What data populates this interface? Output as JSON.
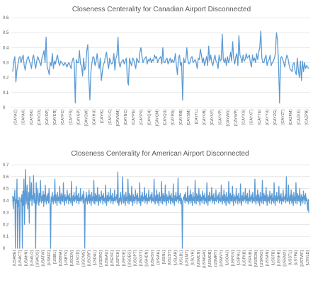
{
  "chart_data": [
    {
      "type": "line",
      "title": "Closeness Centerality for Canadian Airport Disconnected",
      "xlabel": "",
      "ylabel": "",
      "ylim": [
        0,
        0.6
      ],
      "yticks": [
        "0",
        "0.1",
        "0.2",
        "0.3",
        "0.4",
        "0.5",
        "0.6"
      ],
      "grid": true,
      "legend": "none",
      "color": "#5b9bd5",
      "x_tick_labels": [
        "[CAYAC]",
        "[CAYAX]",
        "[CAYBK]",
        "[CAYCO]",
        "[CAYDP]",
        "[CAYER]",
        "[CAYFC]",
        "[CAYFS]",
        "[CAYGP]",
        "[CAYGW]",
        "[CAYHU]",
        "[CAYIK]",
        "[CAYLC]",
        "[CAYMM]",
        "[CAYNC]",
        "[CAYPE]",
        "[CAYPX]",
        "[CAYQH]",
        "[CAYQM]",
        "[CAYQU]",
        "[CAYRA]",
        "[CAYRB]",
        "[CAYSM]",
        "[CAYTL]",
        "[CAYUB]",
        "[CAYUY]",
        "[CAYVP]",
        "[CAYWG]",
        "[CAYWP]",
        "[CAYXS]",
        "[CAYXT]",
        "[CAYYE]",
        "[CAYYU]",
        "[CAYZG]",
        "[CAYZT]",
        "[CAZFM]",
        "[CAZKE]",
        "[CAZPB]"
      ],
      "values": [
        0.24,
        0.31,
        0.34,
        0.17,
        0.25,
        0.29,
        0.33,
        0.34,
        0.3,
        0.33,
        0.35,
        0.28,
        0.25,
        0.3,
        0.33,
        0.34,
        0.31,
        0.29,
        0.26,
        0.33,
        0.35,
        0.3,
        0.26,
        0.31,
        0.34,
        0.32,
        0.3,
        0.28,
        0.33,
        0.35,
        0.38,
        0.3,
        0.47,
        0.27,
        0.25,
        0.22,
        0.3,
        0.28,
        0.36,
        0.26,
        0.31,
        0.29,
        0.33,
        0.35,
        0.3,
        0.28,
        0.31,
        0.3,
        0.29,
        0.28,
        0.3,
        0.29,
        0.27,
        0.29,
        0.3,
        0.28,
        0.26,
        0.31,
        0.33,
        0.3,
        0.03,
        0.32,
        0.3,
        0.3,
        0.38,
        0.29,
        0.28,
        0.21,
        0.33,
        0.25,
        0.27,
        0.38,
        0.42,
        0.2,
        0.05,
        0.24,
        0.3,
        0.34,
        0.33,
        0.28,
        0.31,
        0.36,
        0.29,
        0.26,
        0.33,
        0.18,
        0.24,
        0.29,
        0.3,
        0.35,
        0.37,
        0.3,
        0.26,
        0.33,
        0.3,
        0.29,
        0.3,
        0.36,
        0.25,
        0.33,
        0.35,
        0.47,
        0.3,
        0.27,
        0.3,
        0.31,
        0.32,
        0.29,
        0.31,
        0.33,
        0.18,
        0.15,
        0.33,
        0.3,
        0.28,
        0.33,
        0.32,
        0.29,
        0.26,
        0.33,
        0.31,
        0.3,
        0.37,
        0.4,
        0.34,
        0.3,
        0.32,
        0.33,
        0.34,
        0.29,
        0.32,
        0.31,
        0.33,
        0.3,
        0.32,
        0.31,
        0.35,
        0.33,
        0.34,
        0.3,
        0.32,
        0.33,
        0.34,
        0.29,
        0.4,
        0.3,
        0.3,
        0.32,
        0.33,
        0.29,
        0.31,
        0.33,
        0.3,
        0.32,
        0.3,
        0.31,
        0.36,
        0.28,
        0.22,
        0.33,
        0.35,
        0.28,
        0.3,
        0.05,
        0.33,
        0.3,
        0.31,
        0.4,
        0.32,
        0.29,
        0.3,
        0.33,
        0.34,
        0.3,
        0.31,
        0.32,
        0.3,
        0.26,
        0.33,
        0.32,
        0.39,
        0.35,
        0.3,
        0.33,
        0.28,
        0.31,
        0.34,
        0.28,
        0.41,
        0.31,
        0.35,
        0.3,
        0.28,
        0.32,
        0.35,
        0.31,
        0.3,
        0.26,
        0.35,
        0.31,
        0.32,
        0.49,
        0.32,
        0.3,
        0.33,
        0.28,
        0.34,
        0.3,
        0.32,
        0.37,
        0.31,
        0.44,
        0.33,
        0.29,
        0.34,
        0.36,
        0.28,
        0.48,
        0.35,
        0.33,
        0.3,
        0.35,
        0.31,
        0.32,
        0.36,
        0.33,
        0.34,
        0.35,
        0.3,
        0.27,
        0.35,
        0.31,
        0.33,
        0.3,
        0.36,
        0.32,
        0.37,
        0.4,
        0.51,
        0.33,
        0.3,
        0.3,
        0.33,
        0.35,
        0.28,
        0.31,
        0.32,
        0.35,
        0.28,
        0.3,
        0.31,
        0.33,
        0.36,
        0.5,
        0.45,
        0.3,
        0.03,
        0.33,
        0.34,
        0.32,
        0.3,
        0.27,
        0.32,
        0.35,
        0.33,
        0.29,
        0.26,
        0.25,
        0.24,
        0.29,
        0.3,
        0.24,
        0.22,
        0.33,
        0.25,
        0.2,
        0.31,
        0.18,
        0.31,
        0.24,
        0.3,
        0.26,
        0.28,
        0.27,
        0.26
      ]
    },
    {
      "type": "line",
      "title": "Closeness Centerality for American Airport Disconnected",
      "xlabel": "",
      "ylabel": "",
      "ylim": [
        0,
        0.7
      ],
      "yticks": [
        "0",
        "0.1",
        "0.2",
        "0.3",
        "0.4",
        "0.5",
        "0.6",
        "0.7"
      ],
      "grid": true,
      "legend": "none",
      "color": "#5b9bd5",
      "x_tick_labels": [
        "[USABE]",
        "[USACT]",
        "[USAHN]",
        "[USALO]",
        "[USAOO]",
        "[USATW]",
        "[USBFF]",
        "[USBIL]",
        "[USBNA]",
        "[USBTV]",
        "[USCDV]",
        "[USCID]",
        "[USCMS]",
        "[USCRF]",
        "[USDAL]",
        "[USDRO]",
        "[USEAU]",
        "[USESC]",
        "[USFCH]",
        "[USFOE]",
        "[USGEG]",
        "[USGPT]",
        "[USGXY]",
        "[USHDN]",
        "[USHSV]",
        "[USIAH]",
        "[USINL]",
        "[USJST]",
        "[USLAR]",
        "[USLBL]",
        "[USLMT]",
        "[USLYH]",
        "[USMCN]",
        "[USMGW]",
        "[USMOB]",
        "[USMRY]",
        "[USMVY]",
        "[USOAJ]",
        "[USPGV]",
        "[USPHL]",
        "[USPKB]",
        "[USPUB]",
        "[USRDM]",
        "[USRNO]",
        "[USSAN]",
        "[USSFB]",
        "[USSHR]",
        "[USSMX]",
        "[USSTL]",
        "[USTPA]",
        "[USTWF]",
        "[USVLD]"
      ],
      "values": [
        0.44,
        0.33,
        0.43,
        0.4,
        0.49,
        0.0,
        0.41,
        0.38,
        0.58,
        0.0,
        0.4,
        0.35,
        0.43,
        0.0,
        0.31,
        0.42,
        0.39,
        0.45,
        0.0,
        0.48,
        0.36,
        0.58,
        0.2,
        0.44,
        0.66,
        0.37,
        0.42,
        0.53,
        0.33,
        0.39,
        0.47,
        0.21,
        0.6,
        0.4,
        0.42,
        0.55,
        0.36,
        0.44,
        0.41,
        0.61,
        0.38,
        0.46,
        0.4,
        0.0,
        0.55,
        0.37,
        0.43,
        0.5,
        0.4,
        0.36,
        0.46,
        0.39,
        0.57,
        0.42,
        0.38,
        0.44,
        0.4,
        0.48,
        0.35,
        0.45,
        0.39,
        0.53,
        0.41,
        0.37,
        0.44,
        0.4,
        0.46,
        0.38,
        0.5,
        0.42,
        0.36,
        0.0,
        0.43,
        0.39,
        0.47,
        0.41,
        0.37,
        0.44,
        0.4,
        0.58,
        0.38,
        0.45,
        0.41,
        0.36,
        0.47,
        0.4,
        0.43,
        0.38,
        0.52,
        0.42,
        0.37,
        0.46,
        0.4,
        0.44,
        0.39,
        0.55,
        0.41,
        0.36,
        0.45,
        0.4,
        0.43,
        0.38,
        0.49,
        0.41,
        0.44,
        0.37,
        0.46,
        0.4,
        0.42,
        0.38,
        0.56,
        0.41,
        0.36,
        0.44,
        0.4,
        0.47,
        0.39,
        0.43,
        0.41,
        0.52,
        0.38,
        0.44,
        0.4,
        0.46,
        0.37,
        0.42,
        0.4,
        0.5,
        0.39,
        0.43,
        0.41,
        0.45,
        0.38,
        0.48,
        0.4,
        0.0,
        0.42,
        0.39,
        0.47,
        0.41,
        0.37,
        0.44,
        0.4,
        0.49,
        0.38,
        0.45,
        0.41,
        0.36,
        0.47,
        0.4,
        0.43,
        0.38,
        0.57,
        0.42,
        0.37,
        0.46,
        0.4,
        0.44,
        0.39,
        0.51,
        0.41,
        0.36,
        0.45,
        0.4,
        0.43,
        0.38,
        0.48,
        0.41,
        0.44,
        0.37,
        0.46,
        0.4,
        0.42,
        0.38,
        0.53,
        0.41,
        0.36,
        0.44,
        0.4,
        0.47,
        0.39,
        0.43,
        0.41,
        0.5,
        0.38,
        0.44,
        0.4,
        0.46,
        0.37,
        0.42,
        0.4,
        0.49,
        0.39,
        0.43,
        0.41,
        0.45,
        0.38,
        0.64,
        0.4,
        0.36,
        0.42,
        0.39,
        0.47,
        0.41,
        0.37,
        0.44,
        0.6,
        0.4,
        0.38,
        0.45,
        0.41,
        0.36,
        0.47,
        0.4,
        0.43,
        0.38,
        0.58,
        0.42,
        0.37,
        0.46,
        0.4,
        0.44,
        0.39,
        0.52,
        0.41,
        0.36,
        0.45,
        0.4,
        0.43,
        0.38,
        0.49,
        0.41,
        0.44,
        0.37,
        0.46,
        0.4,
        0.42,
        0.38,
        0.55,
        0.41,
        0.36,
        0.44,
        0.4,
        0.47,
        0.39,
        0.43,
        0.41,
        0.51,
        0.38,
        0.44,
        0.4,
        0.46,
        0.37,
        0.42,
        0.4,
        0.49,
        0.39,
        0.43,
        0.41,
        0.45,
        0.38,
        0.47,
        0.4,
        0.42,
        0.39,
        0.58,
        0.41,
        0.37,
        0.44,
        0.4,
        0.49,
        0.38,
        0.45,
        0.41,
        0.36,
        0.47,
        0.4,
        0.43,
        0.38,
        0.56,
        0.42,
        0.37,
        0.46,
        0.4,
        0.44,
        0.39,
        0.53,
        0.41,
        0.36,
        0.45,
        0.4,
        0.43,
        0.38,
        0.48,
        0.41,
        0.44,
        0.37,
        0.46,
        0.4,
        0.42,
        0.38,
        0.54,
        0.41,
        0.36,
        0.44,
        0.4,
        0.47,
        0.39,
        0.43,
        0.41,
        0.59,
        0.38,
        0.44,
        0.4,
        0.46,
        0.37,
        0.42,
        0.4,
        0.0,
        0.39,
        0.43,
        0.41,
        0.45,
        0.38,
        0.47,
        0.4,
        0.42,
        0.39,
        0.52,
        0.41,
        0.37,
        0.44,
        0.4,
        0.49,
        0.38,
        0.45,
        0.41,
        0.36,
        0.47,
        0.4,
        0.43,
        0.38,
        0.57,
        0.42,
        0.37,
        0.46,
        0.4,
        0.44,
        0.39,
        0.5,
        0.41,
        0.36,
        0.45,
        0.4,
        0.43,
        0.38,
        0.48,
        0.41,
        0.44,
        0.37,
        0.46,
        0.4,
        0.42,
        0.38,
        0.55,
        0.41,
        0.36,
        0.44,
        0.4,
        0.47,
        0.39,
        0.43,
        0.41,
        0.51,
        0.38,
        0.44,
        0.4,
        0.46,
        0.37,
        0.42,
        0.4,
        0.49,
        0.39,
        0.43,
        0.41,
        0.45,
        0.38,
        0.47,
        0.4,
        0.42,
        0.39,
        0.53,
        0.41,
        0.37,
        0.44,
        0.4,
        0.49,
        0.38,
        0.45,
        0.41,
        0.36,
        0.47,
        0.4,
        0.43,
        0.38,
        0.56,
        0.42,
        0.37,
        0.46,
        0.4,
        0.44,
        0.39,
        0.52,
        0.41,
        0.36,
        0.45,
        0.4,
        0.43,
        0.38,
        0.5,
        0.41,
        0.44,
        0.37,
        0.46,
        0.4,
        0.42,
        0.38,
        0.54,
        0.41,
        0.36,
        0.44,
        0.4,
        0.47,
        0.39,
        0.43,
        0.41,
        0.5,
        0.38,
        0.44,
        0.4,
        0.46,
        0.37,
        0.42,
        0.4,
        0.49,
        0.39,
        0.43,
        0.41,
        0.45,
        0.38,
        0.47,
        0.4,
        0.42,
        0.39,
        0.58,
        0.41,
        0.37,
        0.44,
        0.4,
        0.49,
        0.38,
        0.45,
        0.41,
        0.36,
        0.47,
        0.4,
        0.43,
        0.38,
        0.57,
        0.42,
        0.37,
        0.46,
        0.4,
        0.44,
        0.39,
        0.51,
        0.41,
        0.36,
        0.45,
        0.4,
        0.43,
        0.38,
        0.48,
        0.41,
        0.44,
        0.37,
        0.46,
        0.4,
        0.42,
        0.38,
        0.55,
        0.41,
        0.36,
        0.44,
        0.4,
        0.47,
        0.39,
        0.43,
        0.41,
        0.52,
        0.38,
        0.44,
        0.4,
        0.46,
        0.37,
        0.42,
        0.4,
        0.49,
        0.39,
        0.43,
        0.41,
        0.45,
        0.38,
        0.6,
        0.4,
        0.42,
        0.39,
        0.53,
        0.41,
        0.37,
        0.44,
        0.4,
        0.49,
        0.38,
        0.45,
        0.41,
        0.36,
        0.47,
        0.4,
        0.43,
        0.38,
        0.55,
        0.42,
        0.37,
        0.46,
        0.4,
        0.44,
        0.39,
        0.5,
        0.41,
        0.36,
        0.45,
        0.4,
        0.43,
        0.38,
        0.48,
        0.41,
        0.44,
        0.37,
        0.46,
        0.4,
        0.42,
        0.38,
        0.32,
        0.41,
        0.3
      ]
    }
  ]
}
